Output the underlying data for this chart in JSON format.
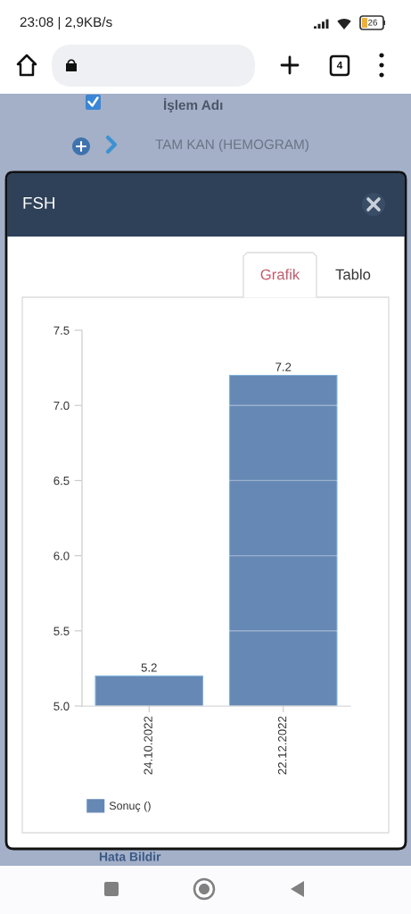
{
  "chart_data": {
    "type": "bar",
    "title": "FSH",
    "annotations": [
      "23:08 | 2,9KB/s",
      "26",
      "4",
      "İşlem Adı",
      "TAM KAN (HEMOGRAM)",
      "Hata Bildir",
      "Grafik",
      "Tablo"
    ],
    "categories": [
      "24.10.2022",
      "22.12.2022"
    ],
    "series": [
      {
        "name": "Sonuç ()",
        "color": "#6688b4",
        "values": [
          5.2,
          7.2
        ]
      }
    ],
    "ylim": [
      5.0,
      7.5
    ],
    "yticks": [
      {
        "value": 5,
        "label": "5.0"
      },
      5.5,
      {
        "value": 6,
        "label": "6.0"
      },
      6.5,
      {
        "value": 7,
        "label": "7.0"
      },
      7.5
    ],
    "grid": "y",
    "legend": "bottom left",
    "data_labels": true
  }
}
